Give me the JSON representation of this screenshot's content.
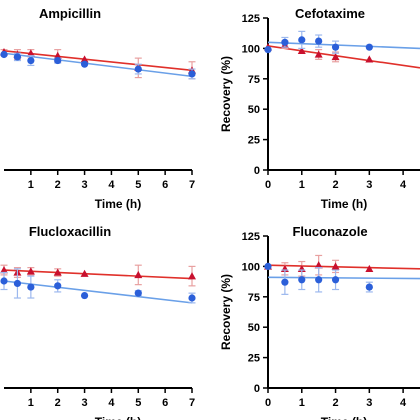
{
  "colors": {
    "series_red": "#c8102e",
    "series_blue": "#2b5fd9",
    "fit_red": "#e0302a",
    "fit_blue": "#6aa0e8",
    "error_red": "#e8a0a0",
    "error_blue": "#9cb8ee",
    "axis": "#000000"
  },
  "chart_data": [
    {
      "type": "scatter",
      "title": "Ampicillin",
      "xlabel": "Time (h)",
      "ylabel": "",
      "xlim": [
        0,
        7
      ],
      "ylim": [
        0,
        125
      ],
      "x_ticks": [
        "1",
        "2",
        "3",
        "4",
        "5",
        "6",
        "7"
      ],
      "y_ticks": [],
      "grid": false,
      "series": [
        {
          "color": "#c8102e",
          "marker": "triangle",
          "points": [
            {
              "x": 0,
              "y": 97,
              "err": 2
            },
            {
              "x": 0.5,
              "y": 95,
              "err": 4
            },
            {
              "x": 1,
              "y": 96,
              "err": 3
            },
            {
              "x": 2,
              "y": 94,
              "err": 5
            },
            {
              "x": 3,
              "y": 91,
              "err": 0
            },
            {
              "x": 5,
              "y": 84,
              "err": 8
            },
            {
              "x": 7,
              "y": 82,
              "err": 7
            }
          ],
          "fit": [
            {
              "x": 0,
              "y": 98
            },
            {
              "x": 7,
              "y": 82
            }
          ]
        },
        {
          "color": "#2b5fd9",
          "marker": "circle",
          "points": [
            {
              "x": 0,
              "y": 95,
              "err": 0
            },
            {
              "x": 0.5,
              "y": 93,
              "err": 3
            },
            {
              "x": 1,
              "y": 90,
              "err": 4
            },
            {
              "x": 2,
              "y": 90,
              "err": 2
            },
            {
              "x": 3,
              "y": 87,
              "err": 0
            },
            {
              "x": 5,
              "y": 83,
              "err": 4
            },
            {
              "x": 7,
              "y": 79,
              "err": 4
            }
          ],
          "fit": [
            {
              "x": 0,
              "y": 96
            },
            {
              "x": 7,
              "y": 77
            }
          ]
        }
      ]
    },
    {
      "type": "scatter",
      "title": "Cefotaxime",
      "xlabel": "Time (h)",
      "ylabel": "Recovery (%)",
      "xlim": [
        0,
        4.5
      ],
      "ylim": [
        0,
        125
      ],
      "x_ticks": [
        "0",
        "1",
        "2",
        "3",
        "4"
      ],
      "y_ticks": [
        "0",
        "25",
        "50",
        "75",
        "100",
        "125"
      ],
      "grid": false,
      "series": [
        {
          "color": "#c8102e",
          "marker": "triangle",
          "points": [
            {
              "x": 0,
              "y": 101,
              "err": 0
            },
            {
              "x": 0.5,
              "y": 103,
              "err": 3
            },
            {
              "x": 1,
              "y": 98,
              "err": 0
            },
            {
              "x": 1.5,
              "y": 95,
              "err": 4
            },
            {
              "x": 2,
              "y": 93,
              "err": 4
            },
            {
              "x": 3,
              "y": 91,
              "err": 0
            }
          ],
          "fit": [
            {
              "x": 0,
              "y": 102
            },
            {
              "x": 4.5,
              "y": 84
            }
          ]
        },
        {
          "color": "#2b5fd9",
          "marker": "circle",
          "points": [
            {
              "x": 0,
              "y": 99,
              "err": 0
            },
            {
              "x": 0.5,
              "y": 105,
              "err": 4
            },
            {
              "x": 1,
              "y": 107,
              "err": 7
            },
            {
              "x": 1.5,
              "y": 106,
              "err": 5
            },
            {
              "x": 2,
              "y": 101,
              "err": 5
            },
            {
              "x": 3,
              "y": 101,
              "err": 0
            }
          ],
          "fit": [
            {
              "x": 0,
              "y": 105
            },
            {
              "x": 4.5,
              "y": 100
            }
          ]
        }
      ]
    },
    {
      "type": "scatter",
      "title": "Flucloxacillin",
      "xlabel": "Time (h)",
      "ylabel": "",
      "xlim": [
        0,
        7
      ],
      "ylim": [
        0,
        125
      ],
      "x_ticks": [
        "1",
        "2",
        "3",
        "4",
        "5",
        "6",
        "7"
      ],
      "y_ticks": [],
      "grid": false,
      "series": [
        {
          "color": "#c8102e",
          "marker": "triangle",
          "points": [
            {
              "x": 0,
              "y": 97,
              "err": 4
            },
            {
              "x": 0.5,
              "y": 95,
              "err": 4
            },
            {
              "x": 1,
              "y": 96,
              "err": 3
            },
            {
              "x": 2,
              "y": 95,
              "err": 3
            },
            {
              "x": 3,
              "y": 94,
              "err": 0
            },
            {
              "x": 5,
              "y": 93,
              "err": 8
            },
            {
              "x": 7,
              "y": 92,
              "err": 8
            }
          ],
          "fit": [
            {
              "x": 0,
              "y": 97
            },
            {
              "x": 7,
              "y": 90
            }
          ]
        },
        {
          "color": "#2b5fd9",
          "marker": "circle",
          "points": [
            {
              "x": 0,
              "y": 88,
              "err": 7
            },
            {
              "x": 0.5,
              "y": 86,
              "err": 12
            },
            {
              "x": 1,
              "y": 83,
              "err": 9
            },
            {
              "x": 2,
              "y": 84,
              "err": 5
            },
            {
              "x": 3,
              "y": 76,
              "err": 0
            },
            {
              "x": 5,
              "y": 78,
              "err": 2
            },
            {
              "x": 7,
              "y": 74,
              "err": 4
            }
          ],
          "fit": [
            {
              "x": 0,
              "y": 88
            },
            {
              "x": 7,
              "y": 70
            }
          ]
        }
      ]
    },
    {
      "type": "scatter",
      "title": "Fluconazole",
      "xlabel": "Time (h)",
      "ylabel": "Recovery (%)",
      "xlim": [
        0,
        4.5
      ],
      "ylim": [
        0,
        125
      ],
      "x_ticks": [
        "0",
        "1",
        "2",
        "3",
        "4"
      ],
      "y_ticks": [
        "0",
        "25",
        "50",
        "75",
        "100",
        "125"
      ],
      "grid": false,
      "series": [
        {
          "color": "#c8102e",
          "marker": "triangle",
          "points": [
            {
              "x": 0,
              "y": 100,
              "err": 0
            },
            {
              "x": 0.5,
              "y": 98,
              "err": 5
            },
            {
              "x": 1,
              "y": 98,
              "err": 6
            },
            {
              "x": 1.5,
              "y": 101,
              "err": 8
            },
            {
              "x": 2,
              "y": 100,
              "err": 5
            },
            {
              "x": 3,
              "y": 98,
              "err": 0
            }
          ],
          "fit": [
            {
              "x": 0,
              "y": 101
            },
            {
              "x": 4.5,
              "y": 98
            }
          ]
        },
        {
          "color": "#2b5fd9",
          "marker": "circle",
          "points": [
            {
              "x": 0,
              "y": 100,
              "err": 0
            },
            {
              "x": 0.5,
              "y": 87,
              "err": 10
            },
            {
              "x": 1,
              "y": 89,
              "err": 8
            },
            {
              "x": 1.5,
              "y": 89,
              "err": 10
            },
            {
              "x": 2,
              "y": 89,
              "err": 8
            },
            {
              "x": 3,
              "y": 83,
              "err": 4
            }
          ],
          "fit": [
            {
              "x": 0,
              "y": 91
            },
            {
              "x": 4.5,
              "y": 90
            }
          ]
        }
      ]
    }
  ]
}
